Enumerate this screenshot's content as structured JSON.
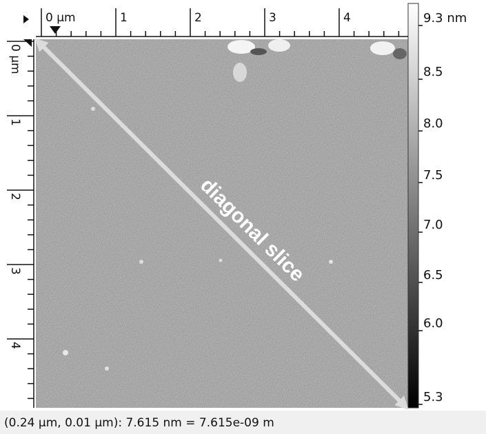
{
  "top_ruler": {
    "labels": [
      "0 µm",
      "1",
      "2",
      "3",
      "4"
    ]
  },
  "left_ruler": {
    "labels": [
      "0 µm",
      "1",
      "2",
      "3",
      "4"
    ]
  },
  "colorbar": {
    "labels": [
      "9.3 nm",
      "8.5",
      "8.0",
      "7.5",
      "7.0",
      "6.5",
      "6.0",
      "5.3"
    ]
  },
  "annotation": "diagonal slice",
  "status_bar": "(0.24 µm, 0.01 µm): 7.615 nm = 7.615e-09 m"
}
